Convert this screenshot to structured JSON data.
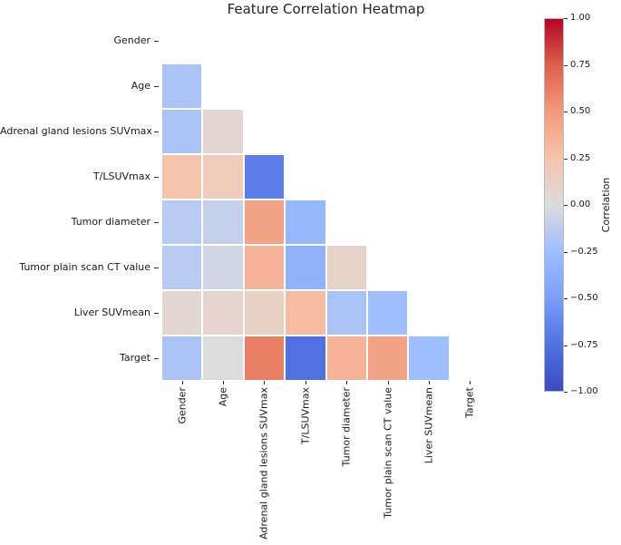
{
  "chart_data": {
    "type": "heatmap",
    "title": "Feature Correlation Heatmap",
    "labels": [
      "Gender",
      "Age",
      "Adrenal gland lesions SUVmax",
      "T/LSUVmax",
      "Tumor diameter",
      "Tumor plain scan CT value",
      "Liver SUVmean",
      "Target"
    ],
    "mask": "upper-triangle-including-diagonal",
    "value_range": [
      -1,
      1
    ],
    "matrix": [
      [
        null,
        null,
        null,
        null,
        null,
        null,
        null,
        null
      ],
      [
        -0.2,
        null,
        null,
        null,
        null,
        null,
        null,
        null
      ],
      [
        -0.2,
        0.05,
        null,
        null,
        null,
        null,
        null,
        null
      ],
      [
        0.25,
        0.18,
        -0.68,
        null,
        null,
        null,
        null,
        null
      ],
      [
        -0.15,
        -0.1,
        0.45,
        -0.3,
        null,
        null,
        null,
        null
      ],
      [
        -0.15,
        -0.05,
        0.35,
        -0.35,
        0.1,
        null,
        null,
        null
      ],
      [
        0.05,
        0.08,
        0.12,
        0.3,
        -0.2,
        -0.25,
        null,
        null
      ],
      [
        -0.2,
        0.0,
        0.62,
        -0.75,
        0.35,
        0.45,
        -0.25,
        null
      ]
    ],
    "colorbar": {
      "label": "Correlation",
      "ticks": [
        1.0,
        0.75,
        0.5,
        0.25,
        0.0,
        -0.25,
        -0.5,
        -0.75,
        -1.0
      ],
      "tick_labels": [
        "1.00",
        "0.75",
        "0.50",
        "0.25",
        "0.00",
        "−0.25",
        "−0.50",
        "−0.75",
        "−1.00"
      ]
    },
    "colormap": {
      "name": "coolwarm",
      "stops": [
        [
          -1.0,
          "#3b4cc0"
        ],
        [
          -0.75,
          "#5171e2"
        ],
        [
          -0.5,
          "#7c9ff9"
        ],
        [
          -0.25,
          "#9ebeff"
        ],
        [
          0.0,
          "#dddcdc"
        ],
        [
          0.25,
          "#f5c4ad"
        ],
        [
          0.5,
          "#f49a7b"
        ],
        [
          0.75,
          "#de604d"
        ],
        [
          1.0,
          "#b40426"
        ]
      ]
    },
    "grid_line_color": "#ffffff",
    "legend_position": "right-colorbar",
    "grid": false
  }
}
